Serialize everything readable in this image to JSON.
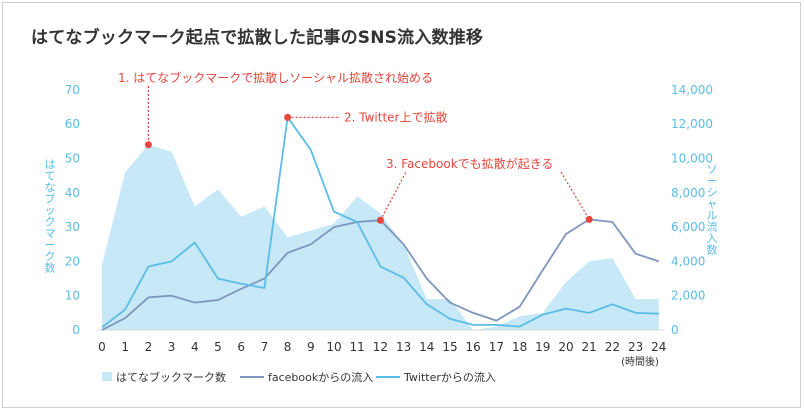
{
  "chart_data": {
    "type": "area",
    "title": "はてなブックマーク起点で拡散した記事のSNS流入数推移",
    "x": [
      "0",
      "1",
      "2",
      "3",
      "4",
      "5",
      "6",
      "7",
      "8",
      "9",
      "10",
      "11",
      "12",
      "13",
      "14",
      "15",
      "16",
      "17",
      "18",
      "19",
      "20",
      "21",
      "22",
      "23",
      "24"
    ],
    "x_unit": "(時間後)",
    "y_left": {
      "label": "はてなブックマーク数",
      "ticks": [
        "0",
        "10",
        "20",
        "30",
        "40",
        "50",
        "60",
        "70"
      ],
      "ylim": [
        0,
        70
      ]
    },
    "y_right": {
      "label": "ソーシャル流入数",
      "ticks": [
        "0",
        "2,000",
        "4,000",
        "6,000",
        "8,000",
        "10,000",
        "12,000",
        "14,000"
      ],
      "ylim": [
        0,
        14000
      ]
    },
    "series": [
      {
        "name": "はてなブックマーク数",
        "type": "area",
        "axis": "left",
        "color": "#c7e8f7",
        "values": [
          19,
          46,
          54,
          52,
          36,
          41,
          33,
          36,
          27,
          29,
          31,
          39,
          34,
          25,
          9,
          9,
          0,
          1,
          4,
          5,
          14,
          20,
          21,
          9,
          9
        ]
      },
      {
        "name": "facebookからの流入",
        "type": "line",
        "axis": "right",
        "color": "#7e96bd",
        "values": [
          0,
          700,
          1900,
          2000,
          1600,
          1750,
          2400,
          3000,
          4500,
          5000,
          6000,
          6300,
          6400,
          5000,
          3000,
          1600,
          1000,
          550,
          1350,
          3500,
          5600,
          6450,
          6300,
          4450,
          4000
        ]
      },
      {
        "name": "Twitterからの流入",
        "type": "line",
        "axis": "right",
        "color": "#5bbde6",
        "values": [
          150,
          1200,
          3700,
          4000,
          5100,
          3000,
          2700,
          2450,
          12400,
          10500,
          6900,
          6300,
          3700,
          3050,
          1500,
          650,
          300,
          300,
          200,
          900,
          1250,
          1000,
          1500,
          1000,
          950
        ]
      }
    ],
    "annotations": [
      {
        "text": "1. はてなブックマークで拡散しソーシャル拡散され始める",
        "x": 2,
        "series": "はてなブックマーク数"
      },
      {
        "text": "2. Twitter上で拡散",
        "x": 8,
        "series": "Twitterからの流入"
      },
      {
        "text": "3. Facebookでも拡散が起きる",
        "x": 12,
        "series": "facebookからの流入"
      }
    ],
    "highlight_point": {
      "x": 21,
      "series": "facebookからの流入"
    },
    "annotation_color": "#e8453c",
    "legend_position": "bottom-left",
    "grid": false
  }
}
